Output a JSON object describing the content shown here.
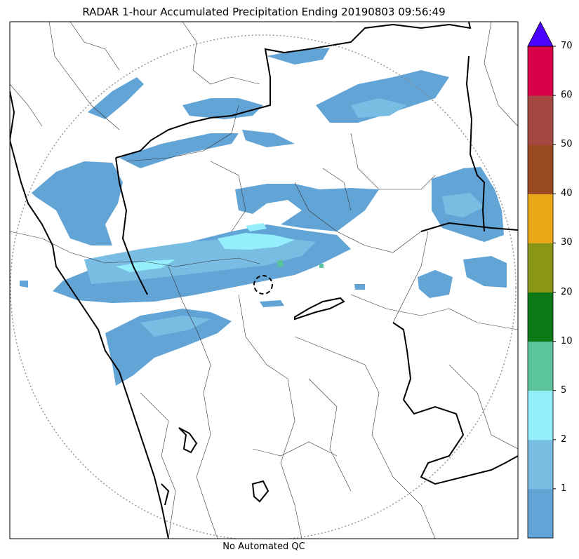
{
  "title": "RADAR 1-hour Accumulated Precipitation Ending 20190803 09:56:49",
  "footer": "No Automated QC",
  "legend": {
    "ticks": [
      "1",
      "2",
      "5",
      "10",
      "20",
      "30",
      "40",
      "50",
      "60",
      "70"
    ],
    "colors": [
      "#62a4d6",
      "#79bde3",
      "#94eefc",
      "#5cc49c",
      "#0b7a16",
      "#8a9616",
      "#e8a818",
      "#9a4a20",
      "#a64842",
      "#d80046",
      "#4c00ff"
    ]
  },
  "map": {
    "range_ring_color": "#888888",
    "radar_marker": "radar-site"
  }
}
